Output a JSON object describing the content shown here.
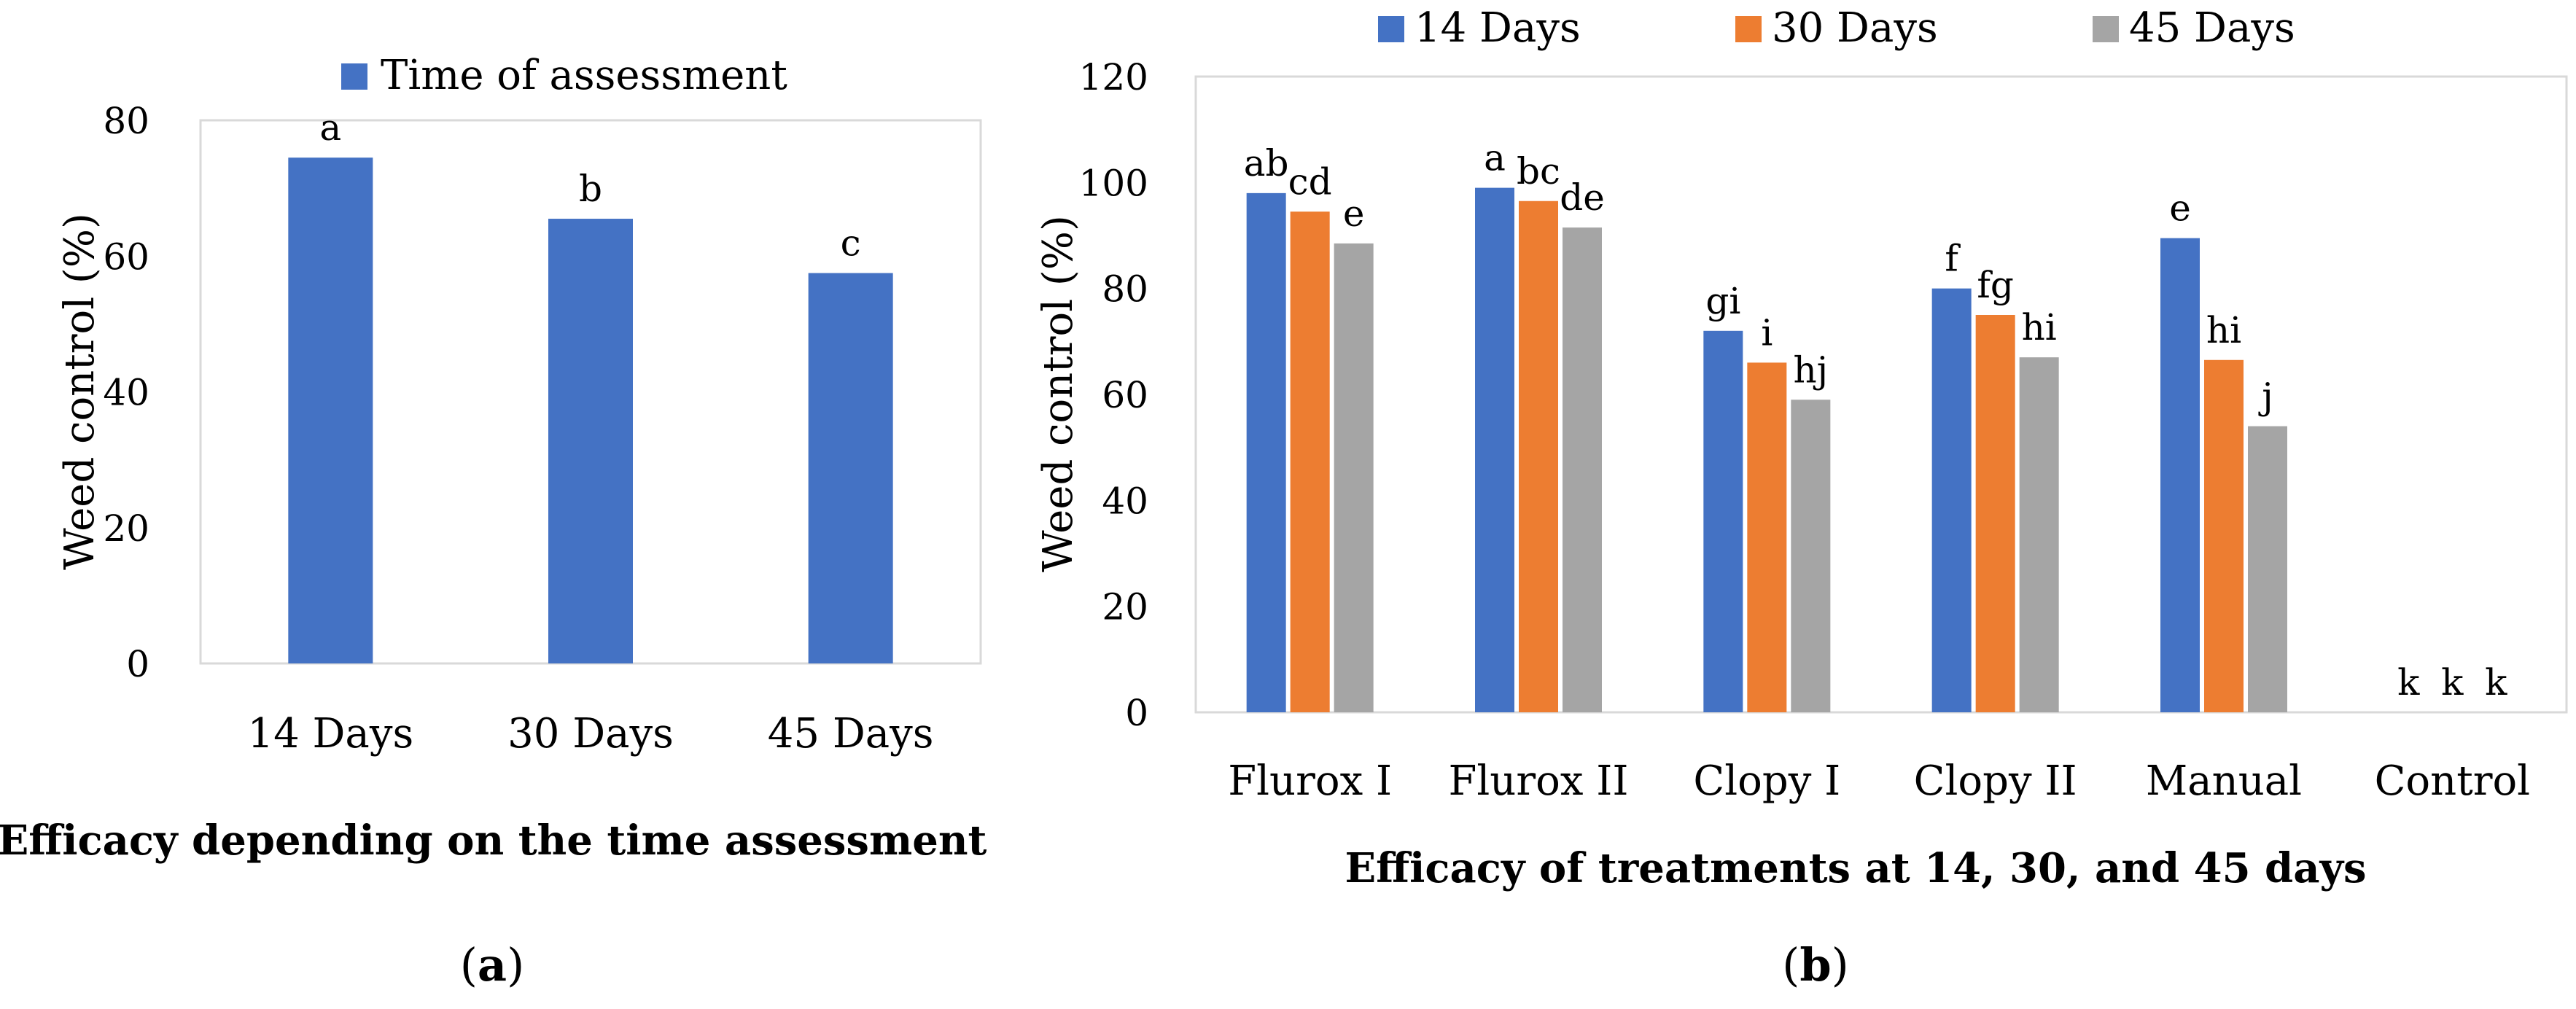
{
  "chart_data": [
    {
      "type": "bar",
      "title": "Efficacy depending on the time assessment",
      "panel_label": "a",
      "ylabel": "Weed control (%)",
      "xlabel": "",
      "ylim": [
        0,
        80
      ],
      "yticks": [
        0,
        20,
        40,
        60,
        80
      ],
      "legend": {
        "position": "top",
        "entries": [
          "Time of assessment"
        ]
      },
      "categories": [
        "14 Days",
        "30 Days",
        "45 Days"
      ],
      "series": [
        {
          "name": "Time of assessment",
          "color": "#4472C4",
          "values": [
            74.5,
            65.5,
            57.5
          ],
          "labels": [
            "a",
            "b",
            "c"
          ]
        }
      ]
    },
    {
      "type": "bar",
      "title": "Efficacy of treatments at 14, 30, and 45 days",
      "panel_label": "b",
      "ylabel": "Weed control (%)",
      "xlabel": "",
      "ylim": [
        0,
        120
      ],
      "yticks": [
        0,
        20,
        40,
        60,
        80,
        100,
        120
      ],
      "legend": {
        "position": "top",
        "entries": [
          "14 Days",
          "30 Days",
          "45 Days"
        ]
      },
      "categories": [
        "Flurox I",
        "Flurox II",
        "Clopy I",
        "Clopy II",
        "Manual",
        "Control"
      ],
      "series": [
        {
          "name": "14 Days",
          "color": "#4472C4",
          "values": [
            98,
            99,
            72,
            80,
            89.5,
            0
          ],
          "labels": [
            "ab",
            "a",
            "gi",
            "f",
            "e",
            "k"
          ]
        },
        {
          "name": "30 Days",
          "color": "#ED7D31",
          "values": [
            94.5,
            96.5,
            66,
            75,
            66.5,
            0
          ],
          "labels": [
            "cd",
            "bc",
            "i",
            "fg",
            "hi",
            "k"
          ]
        },
        {
          "name": "45 Days",
          "color": "#A5A5A5",
          "values": [
            88.5,
            91.5,
            59,
            67,
            54,
            0
          ],
          "labels": [
            "e",
            "de",
            "hj",
            "hi",
            "j",
            "k"
          ]
        }
      ]
    }
  ]
}
